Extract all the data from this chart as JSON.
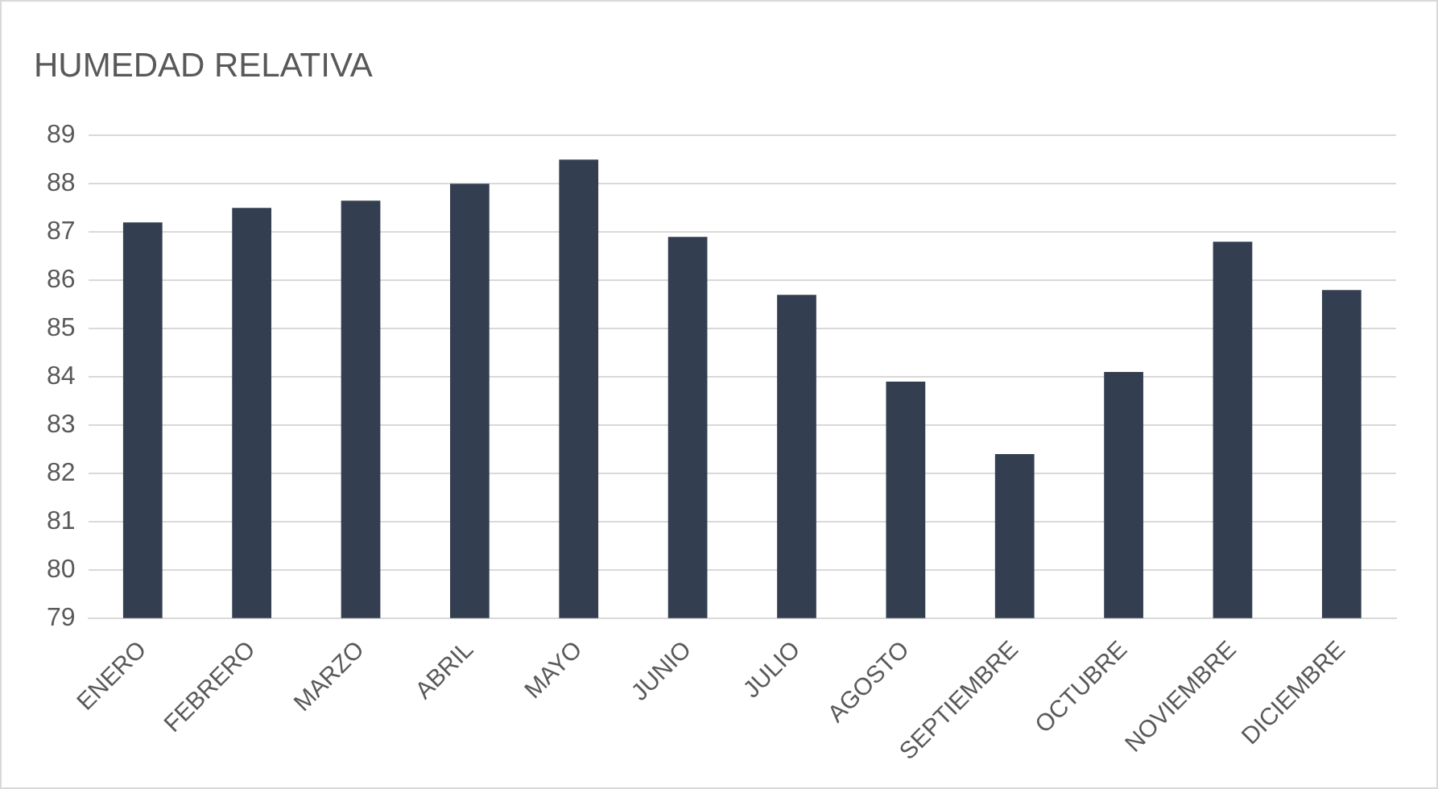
{
  "chart_data": {
    "type": "bar",
    "title": "HUMEDAD RELATIVA",
    "categories": [
      "ENERO",
      "FEBRERO",
      "MARZO",
      "ABRIL",
      "MAYO",
      "JUNIO",
      "JULIO",
      "AGOSTO",
      "SEPTIEMBRE",
      "OCTUBRE",
      "NOVIEMBRE",
      "DICIEMBRE"
    ],
    "values": [
      87.2,
      87.5,
      87.65,
      88.0,
      88.5,
      86.9,
      85.7,
      83.9,
      82.4,
      84.1,
      86.8,
      85.8
    ],
    "color": "#333f50",
    "ylim": [
      79,
      89
    ],
    "yticks": [
      79,
      80,
      81,
      82,
      83,
      84,
      85,
      86,
      87,
      88,
      89
    ],
    "grid": "y",
    "legend": false
  }
}
